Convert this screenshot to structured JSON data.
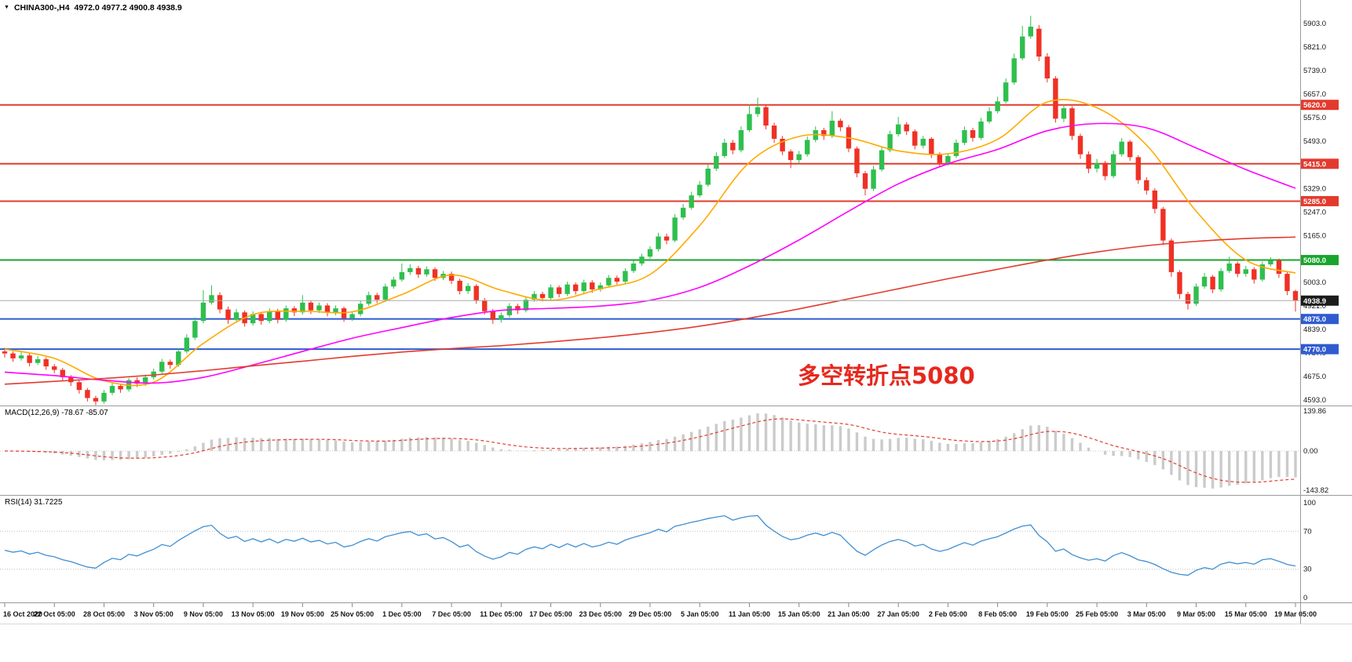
{
  "window": {
    "title_symbol": "CHINA300-,H4",
    "title_ohlc": "4972.0 4977.2 4900.8 4938.9"
  },
  "annotation": {
    "text": "多空转折点5080",
    "color": "#e6281e"
  },
  "macd_panel": {
    "label": "MACD(12,26,9) -78.67 -85.07",
    "axis_labels": [
      "139.86",
      "0.00",
      "-143.82"
    ]
  },
  "rsi_panel": {
    "label": "RSI(14) 31.7225",
    "axis_labels": [
      "100",
      "70",
      "30",
      "0"
    ],
    "axis_values": [
      100,
      70,
      30,
      0
    ],
    "level_lines": [
      70,
      30
    ]
  },
  "chart_data": {
    "type": "candlestick",
    "symbol": "CHINA300-",
    "timeframe": "H4",
    "ohlc_current": {
      "open": 4972.0,
      "high": 4977.2,
      "low": 4900.8,
      "close": 4938.9
    },
    "colors": {
      "up": "#2fbf4e",
      "down": "#ef3124",
      "macd_hist": "#cbcbcb",
      "macd_signal": "#e23b2e",
      "rsi_line": "#3f8fd2",
      "bid_line": "#aaaaaa"
    },
    "y_axis": {
      "top_value": 5903,
      "bottom_value": 4593,
      "labels": [
        "5903.0",
        "5821.0",
        "5739.0",
        "5657.0",
        "5575.0",
        "5493.0",
        "5411.0",
        "5329.0",
        "5247.0",
        "5165.0",
        "5083.0",
        "5003.0",
        "4921.0",
        "4839.0",
        "4757.0",
        "4675.0",
        "4593.0"
      ]
    },
    "x_labels": [
      "16 Oct 2020",
      "22 Oct 05:00",
      "28 Oct 05:00",
      "3 Nov 05:00",
      "9 Nov 05:00",
      "13 Nov 05:00",
      "19 Nov 05:00",
      "25 Nov 05:00",
      "1 Dec 05:00",
      "7 Dec 05:00",
      "11 Dec 05:00",
      "17 Dec 05:00",
      "23 Dec 05:00",
      "29 Dec 05:00",
      "5 Jan 05:00",
      "11 Jan 05:00",
      "15 Jan 05:00",
      "21 Jan 05:00",
      "27 Jan 05:00",
      "2 Feb 05:00",
      "8 Feb 05:00",
      "19 Feb 05:00",
      "25 Feb 05:00",
      "3 Mar 05:00",
      "9 Mar 05:00",
      "15 Mar 05:00",
      "19 Mar 05:00"
    ],
    "levels": [
      {
        "value": 5620.0,
        "label": "5620.0",
        "color": "#e23b2e"
      },
      {
        "value": 5415.0,
        "label": "5415.0",
        "color": "#e23b2e"
      },
      {
        "value": 5285.0,
        "label": "5285.0",
        "color": "#e23b2e"
      },
      {
        "value": 5080.0,
        "label": "5080.0",
        "color": "#18a52c"
      },
      {
        "value": 4875.0,
        "label": "4875.0",
        "color": "#2f5bd0"
      },
      {
        "value": 4770.0,
        "label": "4770.0",
        "color": "#2f5bd0"
      }
    ],
    "current_price": {
      "value": 4938.9,
      "label": "4938.9",
      "badge_color": "#1c1c1c"
    },
    "moving_averages": [
      {
        "name": "ma-fast",
        "color": "#ffaa00",
        "values": [
          4770,
          4738,
          4660,
          4655,
          4790,
          4890,
          4902,
          4900,
          4960,
          5028,
          4975,
          4940,
          4980,
          5030,
          5200,
          5420,
          5510,
          5505,
          5460,
          5450,
          5500,
          5630,
          5610,
          5480,
          5250,
          5080,
          5035
        ]
      },
      {
        "name": "ma-mid",
        "color": "#ff00ff",
        "values": [
          4690,
          4678,
          4662,
          4652,
          4672,
          4715,
          4762,
          4808,
          4845,
          4880,
          4905,
          4912,
          4920,
          4940,
          4985,
          5060,
          5150,
          5250,
          5345,
          5415,
          5465,
          5530,
          5555,
          5540,
          5470,
          5395,
          5330
        ]
      },
      {
        "name": "ma-slow",
        "color": "#e23b2e",
        "values": [
          4648,
          4658,
          4668,
          4680,
          4695,
          4712,
          4728,
          4745,
          4760,
          4772,
          4782,
          4795,
          4810,
          4828,
          4850,
          4878,
          4910,
          4945,
          4980,
          5015,
          5048,
          5080,
          5108,
          5130,
          5145,
          5155,
          5160
        ]
      }
    ],
    "macd": {
      "params": [
        12,
        26,
        9
      ],
      "value": -78.67,
      "signal_value": -85.07,
      "axis_values": [
        139.86,
        0.0,
        -143.82
      ]
    },
    "rsi": {
      "period": 14,
      "value": 31.7225
    },
    "candles": [
      [
        4762,
        4775,
        4740,
        4755
      ],
      [
        4755,
        4762,
        4726,
        4738
      ],
      [
        4738,
        4760,
        4730,
        4748
      ],
      [
        4748,
        4754,
        4710,
        4722
      ],
      [
        4722,
        4746,
        4715,
        4735
      ],
      [
        4735,
        4742,
        4698,
        4710
      ],
      [
        4710,
        4718,
        4686,
        4698
      ],
      [
        4698,
        4705,
        4660,
        4672
      ],
      [
        4672,
        4680,
        4642,
        4655
      ],
      [
        4655,
        4662,
        4615,
        4628
      ],
      [
        4628,
        4635,
        4588,
        4600
      ],
      [
        4600,
        4608,
        4575,
        4588
      ],
      [
        4588,
        4628,
        4580,
        4618
      ],
      [
        4618,
        4652,
        4610,
        4642
      ],
      [
        4642,
        4650,
        4618,
        4630
      ],
      [
        4630,
        4670,
        4622,
        4662
      ],
      [
        4662,
        4672,
        4638,
        4650
      ],
      [
        4650,
        4682,
        4642,
        4672
      ],
      [
        4672,
        4702,
        4664,
        4692
      ],
      [
        4692,
        4736,
        4685,
        4726
      ],
      [
        4726,
        4734,
        4702,
        4715
      ],
      [
        4715,
        4772,
        4708,
        4762
      ],
      [
        4762,
        4822,
        4755,
        4810
      ],
      [
        4810,
        4880,
        4802,
        4868
      ],
      [
        4868,
        4975,
        4860,
        4932
      ],
      [
        4932,
        4992,
        4925,
        4958
      ],
      [
        4958,
        4968,
        4895,
        4908
      ],
      [
        4908,
        4918,
        4858,
        4872
      ],
      [
        4872,
        4910,
        4862,
        4898
      ],
      [
        4898,
        4905,
        4848,
        4860
      ],
      [
        4860,
        4902,
        4852,
        4892
      ],
      [
        4892,
        4900,
        4855,
        4868
      ],
      [
        4868,
        4912,
        4860,
        4902
      ],
      [
        4902,
        4910,
        4860,
        4872
      ],
      [
        4872,
        4922,
        4865,
        4912
      ],
      [
        4912,
        4920,
        4885,
        4898
      ],
      [
        4898,
        4958,
        4890,
        4932
      ],
      [
        4932,
        4940,
        4892,
        4905
      ],
      [
        4905,
        4932,
        4896,
        4922
      ],
      [
        4922,
        4930,
        4884,
        4896
      ],
      [
        4896,
        4922,
        4888,
        4912
      ],
      [
        4912,
        4918,
        4865,
        4878
      ],
      [
        4878,
        4902,
        4868,
        4892
      ],
      [
        4892,
        4938,
        4884,
        4928
      ],
      [
        4928,
        4970,
        4920,
        4958
      ],
      [
        4958,
        4966,
        4930,
        4942
      ],
      [
        4942,
        4998,
        4935,
        4988
      ],
      [
        4988,
        5022,
        4980,
        5012
      ],
      [
        5012,
        5068,
        5005,
        5038
      ],
      [
        5038,
        5065,
        5028,
        5052
      ],
      [
        5052,
        5060,
        5018,
        5030
      ],
      [
        5030,
        5058,
        5022,
        5048
      ],
      [
        5048,
        5055,
        5008,
        5018
      ],
      [
        5018,
        5042,
        5010,
        5032
      ],
      [
        5032,
        5040,
        4996,
        5008
      ],
      [
        5008,
        5015,
        4960,
        4972
      ],
      [
        4972,
        5000,
        4962,
        4990
      ],
      [
        4990,
        4996,
        4928,
        4940
      ],
      [
        4940,
        4948,
        4890,
        4902
      ],
      [
        4902,
        4910,
        4858,
        4872
      ],
      [
        4872,
        4898,
        4862,
        4888
      ],
      [
        4888,
        4930,
        4880,
        4920
      ],
      [
        4920,
        4928,
        4892,
        4905
      ],
      [
        4905,
        4952,
        4898,
        4942
      ],
      [
        4942,
        4972,
        4935,
        4962
      ],
      [
        4962,
        4970,
        4936,
        4948
      ],
      [
        4948,
        4995,
        4940,
        4985
      ],
      [
        4985,
        4992,
        4950,
        4962
      ],
      [
        4962,
        5005,
        4955,
        4995
      ],
      [
        4995,
        5002,
        4960,
        4972
      ],
      [
        4972,
        5012,
        4965,
        5002
      ],
      [
        5002,
        5010,
        4966,
        4978
      ],
      [
        4978,
        5002,
        4970,
        4992
      ],
      [
        4992,
        5028,
        4985,
        5018
      ],
      [
        5018,
        5026,
        4995,
        5005
      ],
      [
        5005,
        5052,
        4998,
        5042
      ],
      [
        5042,
        5078,
        5035,
        5068
      ],
      [
        5068,
        5102,
        5060,
        5092
      ],
      [
        5092,
        5128,
        5085,
        5118
      ],
      [
        5118,
        5175,
        5110,
        5162
      ],
      [
        5162,
        5172,
        5135,
        5148
      ],
      [
        5148,
        5240,
        5142,
        5228
      ],
      [
        5228,
        5275,
        5220,
        5262
      ],
      [
        5262,
        5318,
        5255,
        5305
      ],
      [
        5305,
        5355,
        5298,
        5342
      ],
      [
        5342,
        5412,
        5335,
        5398
      ],
      [
        5398,
        5455,
        5390,
        5442
      ],
      [
        5442,
        5502,
        5435,
        5488
      ],
      [
        5488,
        5498,
        5448,
        5462
      ],
      [
        5462,
        5545,
        5455,
        5532
      ],
      [
        5532,
        5622,
        5525,
        5588
      ],
      [
        5588,
        5645,
        5578,
        5612
      ],
      [
        5612,
        5620,
        5535,
        5548
      ],
      [
        5548,
        5558,
        5488,
        5502
      ],
      [
        5502,
        5512,
        5445,
        5458
      ],
      [
        5458,
        5465,
        5400,
        5428
      ],
      [
        5428,
        5460,
        5415,
        5448
      ],
      [
        5448,
        5510,
        5440,
        5498
      ],
      [
        5498,
        5545,
        5490,
        5532
      ],
      [
        5532,
        5540,
        5498,
        5512
      ],
      [
        5512,
        5598,
        5505,
        5565
      ],
      [
        5565,
        5572,
        5528,
        5542
      ],
      [
        5542,
        5550,
        5455,
        5468
      ],
      [
        5468,
        5475,
        5368,
        5382
      ],
      [
        5382,
        5390,
        5305,
        5328
      ],
      [
        5328,
        5408,
        5320,
        5395
      ],
      [
        5395,
        5475,
        5388,
        5462
      ],
      [
        5462,
        5530,
        5455,
        5518
      ],
      [
        5518,
        5578,
        5510,
        5552
      ],
      [
        5552,
        5560,
        5515,
        5528
      ],
      [
        5528,
        5535,
        5465,
        5478
      ],
      [
        5478,
        5512,
        5468,
        5502
      ],
      [
        5502,
        5508,
        5435,
        5448
      ],
      [
        5448,
        5455,
        5405,
        5418
      ],
      [
        5418,
        5452,
        5408,
        5442
      ],
      [
        5442,
        5500,
        5435,
        5488
      ],
      [
        5488,
        5545,
        5480,
        5532
      ],
      [
        5532,
        5540,
        5492,
        5505
      ],
      [
        5505,
        5575,
        5498,
        5562
      ],
      [
        5562,
        5612,
        5555,
        5598
      ],
      [
        5598,
        5648,
        5590,
        5632
      ],
      [
        5632,
        5712,
        5625,
        5698
      ],
      [
        5698,
        5798,
        5690,
        5782
      ],
      [
        5782,
        5895,
        5775,
        5858
      ],
      [
        5858,
        5930,
        5850,
        5892
      ],
      [
        5885,
        5898,
        5772,
        5788
      ],
      [
        5788,
        5800,
        5698,
        5712
      ],
      [
        5712,
        5720,
        5558,
        5572
      ],
      [
        5572,
        5622,
        5560,
        5608
      ],
      [
        5608,
        5615,
        5498,
        5512
      ],
      [
        5512,
        5520,
        5432,
        5448
      ],
      [
        5448,
        5458,
        5382,
        5398
      ],
      [
        5398,
        5432,
        5385,
        5418
      ],
      [
        5418,
        5425,
        5358,
        5372
      ],
      [
        5372,
        5460,
        5365,
        5448
      ],
      [
        5448,
        5505,
        5440,
        5492
      ],
      [
        5492,
        5498,
        5425,
        5438
      ],
      [
        5438,
        5445,
        5345,
        5358
      ],
      [
        5358,
        5368,
        5308,
        5322
      ],
      [
        5322,
        5330,
        5242,
        5258
      ],
      [
        5258,
        5265,
        5132,
        5148
      ],
      [
        5148,
        5155,
        5022,
        5038
      ],
      [
        5038,
        5045,
        4945,
        4962
      ],
      [
        4962,
        4970,
        4908,
        4928
      ],
      [
        4928,
        4998,
        4920,
        4988
      ],
      [
        4988,
        5035,
        4980,
        5022
      ],
      [
        5022,
        5028,
        4965,
        4978
      ],
      [
        4978,
        5052,
        4970,
        5042
      ],
      [
        5042,
        5092,
        5035,
        5068
      ],
      [
        5068,
        5075,
        5020,
        5032
      ],
      [
        5032,
        5060,
        5022,
        5048
      ],
      [
        5048,
        5055,
        4998,
        5012
      ],
      [
        5012,
        5075,
        5005,
        5065
      ],
      [
        5065,
        5090,
        5058,
        5078
      ],
      [
        5078,
        5085,
        5018,
        5032
      ],
      [
        5032,
        5038,
        4958,
        4972
      ],
      [
        4972,
        4977.2,
        4900.8,
        4938.9
      ]
    ]
  }
}
